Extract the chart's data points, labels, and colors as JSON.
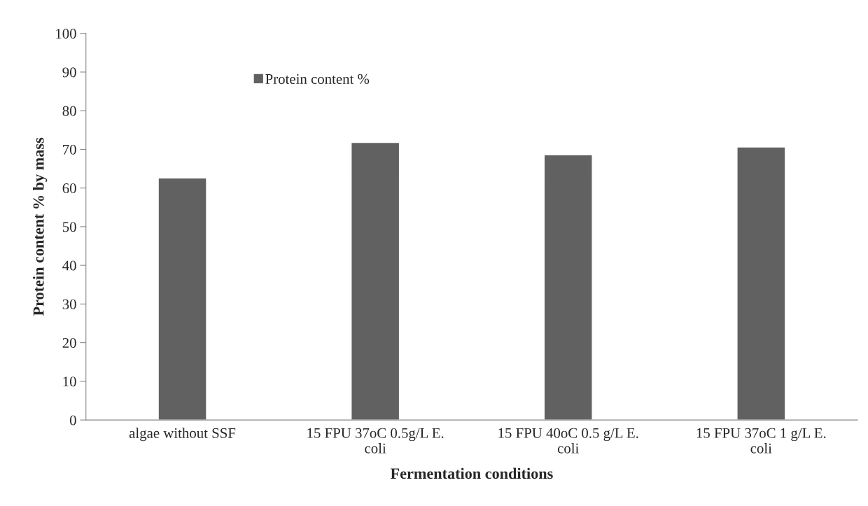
{
  "chart_data": {
    "type": "bar",
    "xlabel": "Fermentation conditions",
    "ylabel": "Protein content % by mass",
    "categories": [
      "algae without SSF",
      "15 FPU 37oC 0.5g/L E.\ncoli",
      "15 FPU 40oC 0.5 g/L E.\ncoli",
      "15 FPU 37oC 1 g/L E.\ncoli"
    ],
    "series": [
      {
        "name": "Protein content %",
        "color": "#616161",
        "values": [
          62.6,
          71.8,
          68.6,
          70.6
        ]
      }
    ],
    "ylim": [
      0,
      100
    ],
    "yticks": [
      0,
      10,
      20,
      30,
      40,
      50,
      60,
      70,
      80,
      90,
      100
    ],
    "grid": false,
    "legend": "top left"
  }
}
